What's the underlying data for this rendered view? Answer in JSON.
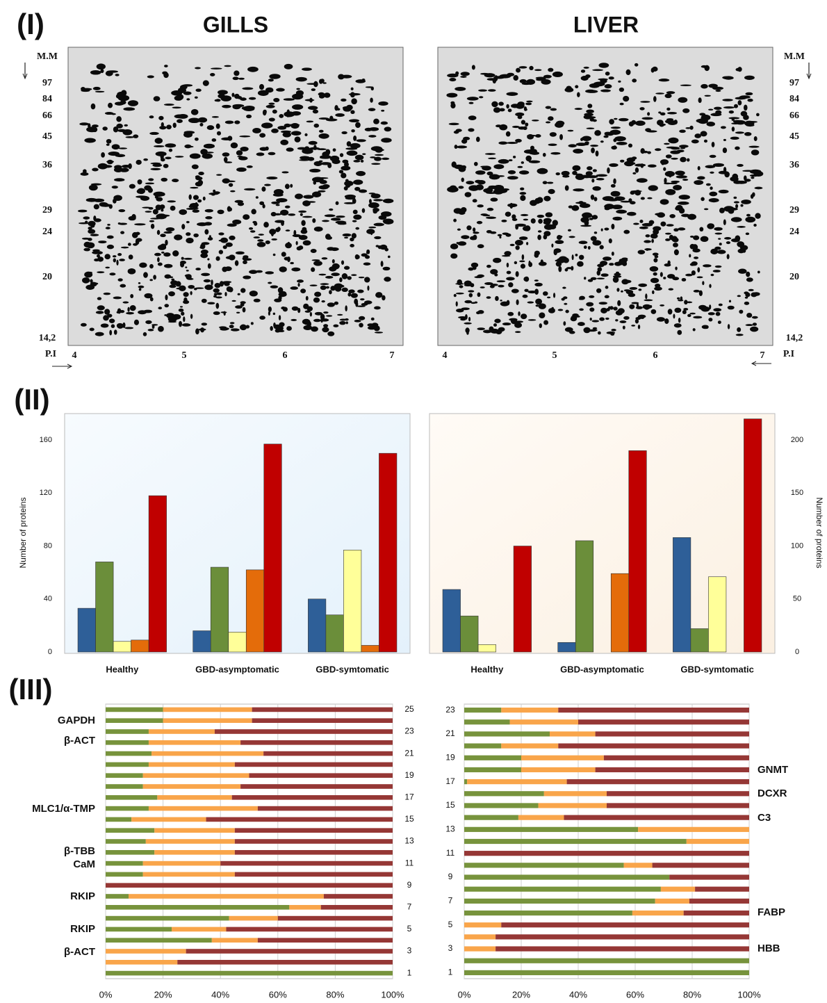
{
  "panel_labels": [
    "(I)",
    "(II)",
    "(III)"
  ],
  "gels": [
    {
      "title": "GILLS",
      "mw_label": "M.M",
      "mw_ticks": [
        "97",
        "84",
        "66",
        "45",
        "36",
        "29",
        "24",
        "20",
        "14,2"
      ],
      "pi_label": "P.I",
      "pi_ticks": [
        "4",
        "5",
        "6",
        "7"
      ]
    },
    {
      "title": "LIVER",
      "mw_label": "M.M",
      "mw_ticks": [
        "97",
        "84",
        "66",
        "45",
        "36",
        "29",
        "24",
        "20",
        "14,2"
      ],
      "pi_label": "P.I",
      "pi_ticks": [
        "4",
        "5",
        "6",
        "7"
      ]
    }
  ],
  "chart_data": [
    {
      "type": "bar",
      "categories": [
        "Healthy",
        "GBD-asymptomatic",
        "GBD-symtomatic"
      ],
      "series": [
        {
          "color": "#2e5f98",
          "values": [
            33,
            16,
            40
          ]
        },
        {
          "color": "#6b8e3a",
          "values": [
            68,
            64,
            28
          ]
        },
        {
          "color": "#ffff99",
          "values": [
            8,
            15,
            77
          ]
        },
        {
          "color": "#e46c0a",
          "values": [
            9,
            62,
            5
          ]
        },
        {
          "color": "#c00000",
          "values": [
            118,
            157,
            150
          ]
        }
      ],
      "ylabel": "Number of proteins",
      "ylim": [
        0,
        180
      ],
      "yticks": [
        0,
        40,
        80,
        120,
        160
      ],
      "yaxis_side": "left",
      "grid": false
    },
    {
      "type": "bar",
      "categories": [
        "Healthy",
        "GBD-asymptomatic",
        "GBD-symtomatic"
      ],
      "series": [
        {
          "color": "#2e5f98",
          "values": [
            59,
            9,
            108
          ]
        },
        {
          "color": "#6b8e3a",
          "values": [
            34,
            105,
            22
          ]
        },
        {
          "color": "#ffff99",
          "values": [
            7,
            0,
            71
          ]
        },
        {
          "color": "#e46c0a",
          "values": [
            0,
            74,
            0
          ]
        },
        {
          "color": "#c00000",
          "values": [
            100,
            190,
            220
          ]
        }
      ],
      "ylabel": "Number of proteins",
      "ylim": [
        0,
        225
      ],
      "yticks": [
        0,
        50,
        100,
        150,
        200
      ],
      "yaxis_side": "right",
      "grid": false
    },
    {
      "type": "barh",
      "stacked": true,
      "categories": [
        1,
        null,
        3,
        null,
        5,
        null,
        7,
        null,
        9,
        null,
        11,
        null,
        13,
        null,
        15,
        null,
        17,
        null,
        19,
        null,
        21,
        null,
        23,
        null,
        25
      ],
      "series": [
        {
          "color": "#77933c",
          "values": [
            100,
            0,
            0,
            37,
            23,
            43,
            64,
            8,
            0,
            13,
            13,
            17,
            14,
            17,
            9,
            15,
            18,
            13,
            13,
            15,
            16,
            15,
            15,
            20,
            20
          ]
        },
        {
          "color": "#f9a54a",
          "values": [
            0,
            25,
            28,
            16,
            19,
            17,
            11,
            68,
            0,
            32,
            27,
            28,
            31,
            28,
            26,
            38,
            26,
            34,
            37,
            30,
            39,
            32,
            23,
            31,
            31
          ]
        },
        {
          "color": "#953735",
          "values": [
            0,
            75,
            72,
            47,
            58,
            40,
            25,
            24,
            100,
            55,
            60,
            55,
            55,
            55,
            65,
            47,
            56,
            53,
            50,
            55,
            45,
            53,
            62,
            49,
            49
          ]
        }
      ],
      "xlim": [
        0,
        100
      ],
      "xticks": [
        {
          "value": 0,
          "label": "0%"
        },
        {
          "value": 20,
          "label": "20%"
        },
        {
          "value": 40,
          "label": "40%"
        },
        {
          "value": 60,
          "label": "60%"
        },
        {
          "value": 80,
          "label": "80%"
        },
        {
          "value": 100,
          "label": "100%"
        }
      ],
      "yaxis_side": "right",
      "grid": true,
      "annotations": [
        "GAPDH",
        "β-ACT",
        "MLC1/α-TMP",
        "β-TBB",
        "CaM",
        "RKIP",
        "RKIP",
        "β-ACT"
      ]
    },
    {
      "type": "barh",
      "stacked": true,
      "categories": [
        1,
        null,
        3,
        null,
        5,
        null,
        7,
        null,
        9,
        null,
        11,
        null,
        13,
        null,
        15,
        null,
        17,
        null,
        19,
        null,
        21,
        null,
        23
      ],
      "series": [
        {
          "color": "#77933c",
          "values": [
            100,
            100,
            0,
            0,
            0,
            59,
            67,
            69,
            72,
            56,
            0,
            78,
            61,
            19,
            26,
            28,
            1,
            20,
            20,
            13,
            30,
            16,
            13
          ]
        },
        {
          "color": "#f9a54a",
          "values": [
            0,
            0,
            11,
            11,
            13,
            18,
            12,
            12,
            0,
            10,
            0,
            22,
            39,
            16,
            24,
            22,
            35,
            26,
            29,
            20,
            16,
            24,
            20
          ]
        },
        {
          "color": "#953735",
          "values": [
            0,
            0,
            89,
            89,
            87,
            23,
            21,
            19,
            28,
            34,
            100,
            0,
            0,
            65,
            50,
            50,
            64,
            54,
            51,
            67,
            54,
            60,
            67
          ]
        }
      ],
      "xlim": [
        0,
        100
      ],
      "xticks": [
        {
          "value": 0,
          "label": "0%"
        },
        {
          "value": 20,
          "label": "20%"
        },
        {
          "value": 40,
          "label": "40%"
        },
        {
          "value": 60,
          "label": "60%"
        },
        {
          "value": 80,
          "label": "80%"
        },
        {
          "value": 100,
          "label": "100%"
        }
      ],
      "yaxis_side": "left",
      "grid": true,
      "annotations": [
        "GNMT",
        "DCXR",
        "C3",
        "FABP",
        "HBB"
      ]
    }
  ]
}
